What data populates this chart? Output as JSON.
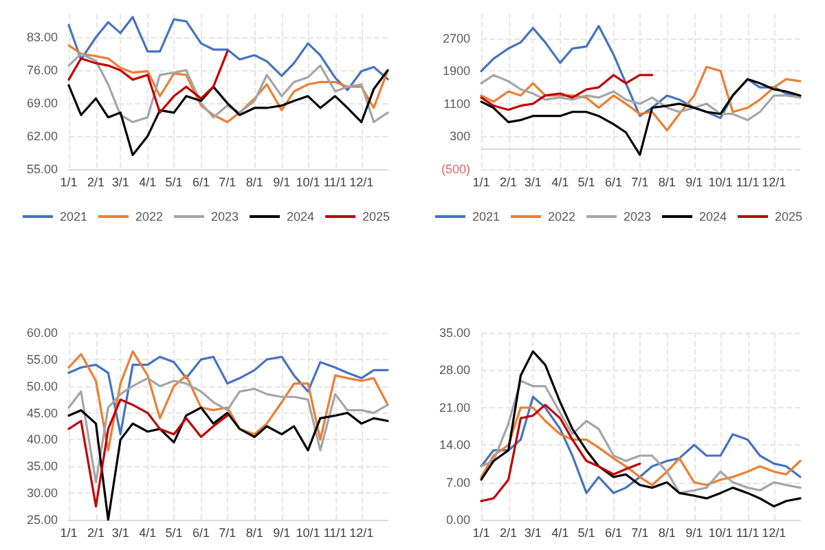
{
  "chart_data": [
    {
      "type": "line",
      "x": [
        "--01-01",
        "--01-15",
        "--02-01",
        "--02-15",
        "--03-01",
        "--03-15",
        "--04-01",
        "--04-15",
        "--05-01",
        "--05-15",
        "--06-01",
        "--06-15",
        "--07-01",
        "--07-15",
        "--08-01",
        "--08-15",
        "--09-01",
        "--09-15",
        "--10-01",
        "--10-15",
        "--11-01",
        "--11-15",
        "--12-01",
        "--12-15",
        "--12-31"
      ],
      "xlim": [
        "--01-01",
        "--12-31"
      ],
      "xticks": [
        {
          "value": "--01-01",
          "label": "1/1"
        },
        {
          "value": "--02-01",
          "label": "2/1"
        },
        {
          "value": "--03-01",
          "label": "3/1"
        },
        {
          "value": "--04-01",
          "label": "4/1"
        },
        {
          "value": "--05-01",
          "label": "5/1"
        },
        {
          "value": "--06-01",
          "label": "6/1"
        },
        {
          "value": "--07-01",
          "label": "7/1"
        },
        {
          "value": "--08-01",
          "label": "8/1"
        },
        {
          "value": "--09-01",
          "label": "9/1"
        },
        {
          "value": "--10-01",
          "label": "10/1"
        },
        {
          "value": "--11-01",
          "label": "11/1"
        },
        {
          "value": "--12-01",
          "label": "12/1"
        }
      ],
      "ylim": [
        55,
        88
      ],
      "yticks": [
        {
          "value": 55,
          "label": "55.00"
        },
        {
          "value": 62,
          "label": "62.00"
        },
        {
          "value": 69,
          "label": "69.00"
        },
        {
          "value": 76,
          "label": "76.00"
        },
        {
          "value": 83,
          "label": "83.00"
        }
      ],
      "grid": true,
      "legend": "bottom",
      "marker": "none",
      "line_style": "solid",
      "series": [
        {
          "name": "2021",
          "color": "#4472c4",
          "values": [
            85.6,
            78.3,
            83,
            86.2,
            83.9,
            87.3,
            80,
            80,
            86.8,
            86.4,
            81.7,
            80.4,
            80.4,
            78.3,
            79.2,
            77.9,
            74.8,
            77.5,
            81.7,
            79.2,
            74.4,
            71.8,
            75.8,
            76.7,
            74.1
          ]
        },
        {
          "name": "2022",
          "color": "#ed7d31",
          "values": [
            81.3,
            79.5,
            79,
            78.5,
            76.5,
            75.5,
            75.8,
            70.5,
            75.3,
            75,
            68.5,
            66.5,
            65,
            67,
            70,
            73,
            67.5,
            71.5,
            73,
            73.5,
            73.5,
            72.5,
            72.5,
            68,
            76
          ]
        },
        {
          "name": "2023",
          "color": "#a5a5a5",
          "values": [
            77,
            79.5,
            78,
            73,
            66.5,
            65,
            66,
            75,
            75.5,
            76,
            69,
            66,
            68.5,
            67,
            69.5,
            75,
            70.5,
            73.5,
            74.5,
            77,
            71.5,
            72.5,
            73,
            65,
            67
          ]
        },
        {
          "name": "2024",
          "color": "#000000",
          "values": [
            72.8,
            66.5,
            70,
            66,
            67,
            58,
            62,
            67.5,
            67,
            70.5,
            69.5,
            72.5,
            69,
            66.5,
            68,
            68,
            68.5,
            69.5,
            70.5,
            68,
            70.5,
            68,
            65,
            72,
            76
          ]
        },
        {
          "name": "2025",
          "color": "#c00000",
          "values": [
            74,
            78.5,
            77.5,
            77,
            76,
            74,
            75,
            67,
            70.5,
            72.5,
            70,
            72.5,
            80,
            null,
            null,
            null,
            null,
            null,
            null,
            null,
            null,
            null,
            null,
            null,
            null
          ]
        }
      ]
    },
    {
      "type": "line",
      "x": [
        "--01-01",
        "--01-15",
        "--02-01",
        "--02-15",
        "--03-01",
        "--03-15",
        "--04-01",
        "--04-15",
        "--05-01",
        "--05-15",
        "--06-01",
        "--06-15",
        "--07-01",
        "--07-15",
        "--08-01",
        "--08-15",
        "--09-01",
        "--09-15",
        "--10-01",
        "--10-15",
        "--11-01",
        "--11-15",
        "--12-01",
        "--12-15",
        "--12-31"
      ],
      "xlim": [
        "--01-01",
        "--12-31"
      ],
      "xticks": [
        {
          "value": "--01-01",
          "label": "1/1"
        },
        {
          "value": "--02-01",
          "label": "2/1"
        },
        {
          "value": "--03-01",
          "label": "3/1"
        },
        {
          "value": "--04-01",
          "label": "4/1"
        },
        {
          "value": "--05-01",
          "label": "5/1"
        },
        {
          "value": "--06-01",
          "label": "6/1"
        },
        {
          "value": "--07-01",
          "label": "7/1"
        },
        {
          "value": "--08-01",
          "label": "8/1"
        },
        {
          "value": "--09-01",
          "label": "9/1"
        },
        {
          "value": "--10-01",
          "label": "10/1"
        },
        {
          "value": "--11-01",
          "label": "11/1"
        },
        {
          "value": "--12-01",
          "label": "12/1"
        }
      ],
      "ylim": [
        -500,
        3300
      ],
      "yticks": [
        {
          "value": -500,
          "label": "(500)"
        },
        300,
        1100,
        1900,
        2700
      ],
      "grid": true,
      "legend": "bottom",
      "marker": "none",
      "line_style": "solid",
      "series": [
        {
          "name": "2021",
          "color": "#4472c4",
          "values": [
            1900,
            2200,
            2450,
            2600,
            2950,
            2600,
            2100,
            2450,
            2500,
            3000,
            2300,
            1600,
            800,
            1000,
            1300,
            1200,
            1000,
            900,
            750,
            1300,
            1700,
            1500,
            1500,
            1350,
            1250
          ]
        },
        {
          "name": "2022",
          "color": "#ed7d31",
          "values": [
            1300,
            1150,
            1400,
            1300,
            1600,
            1300,
            1300,
            1300,
            1250,
            1000,
            1300,
            1100,
            850,
            900,
            450,
            850,
            1300,
            2000,
            1900,
            900,
            1000,
            1200,
            1500,
            1700,
            1650
          ]
        },
        {
          "name": "2023",
          "color": "#a5a5a5",
          "values": [
            1600,
            1800,
            1650,
            1450,
            1350,
            1200,
            1250,
            1200,
            1300,
            1250,
            1400,
            1200,
            1100,
            1250,
            1000,
            900,
            1000,
            1100,
            850,
            850,
            700,
            900,
            1300,
            1300,
            1250
          ]
        },
        {
          "name": "2024",
          "color": "#000000",
          "values": [
            1150,
            1000,
            650,
            700,
            800,
            800,
            800,
            900,
            900,
            800,
            600,
            400,
            -150,
            1000,
            1050,
            1100,
            1000,
            900,
            850,
            1300,
            1700,
            1600,
            1450,
            1400,
            1300
          ]
        },
        {
          "name": "2025",
          "color": "#c00000",
          "values": [
            1250,
            1050,
            950,
            1050,
            1100,
            1300,
            1350,
            1250,
            1450,
            1500,
            1800,
            1600,
            1800,
            1800,
            null,
            null,
            null,
            null,
            null,
            null,
            null,
            null,
            null,
            null,
            null
          ]
        }
      ]
    },
    {
      "type": "line",
      "x": [
        "--01-01",
        "--01-15",
        "--02-01",
        "--02-15",
        "--03-01",
        "--03-15",
        "--04-01",
        "--04-15",
        "--05-01",
        "--05-15",
        "--06-01",
        "--06-15",
        "--07-01",
        "--07-15",
        "--08-01",
        "--08-15",
        "--09-01",
        "--09-15",
        "--10-01",
        "--10-15",
        "--11-01",
        "--11-15",
        "--12-01",
        "--12-15",
        "--12-31"
      ],
      "xlim": [
        "--01-01",
        "--12-31"
      ],
      "xticks": [
        {
          "value": "--01-01",
          "label": "1/1"
        },
        {
          "value": "--02-01",
          "label": "2/1"
        },
        {
          "value": "--03-01",
          "label": "3/1"
        },
        {
          "value": "--04-01",
          "label": "4/1"
        },
        {
          "value": "--05-01",
          "label": "5/1"
        },
        {
          "value": "--06-01",
          "label": "6/1"
        },
        {
          "value": "--07-01",
          "label": "7/1"
        },
        {
          "value": "--08-01",
          "label": "8/1"
        },
        {
          "value": "--09-01",
          "label": "9/1"
        },
        {
          "value": "--10-01",
          "label": "10/1"
        },
        {
          "value": "--11-01",
          "label": "11/1"
        },
        {
          "value": "--12-01",
          "label": "12/1"
        }
      ],
      "ylim": [
        25,
        60
      ],
      "yticks": [
        {
          "value": 25,
          "label": "25.00"
        },
        {
          "value": 30,
          "label": "30.00"
        },
        {
          "value": 35,
          "label": "35.00"
        },
        {
          "value": 40,
          "label": "40.00"
        },
        {
          "value": 45,
          "label": "45.00"
        },
        {
          "value": 50,
          "label": "50.00"
        },
        {
          "value": 55,
          "label": "55.00"
        },
        {
          "value": 60,
          "label": "60.00"
        }
      ],
      "grid": true,
      "marker": "none",
      "line_style": "solid",
      "series": [
        {
          "color": "#4472c4",
          "values": [
            52.5,
            53.5,
            54,
            52.5,
            41,
            54,
            54,
            55.5,
            54.5,
            51.5,
            55,
            55.5,
            50.5,
            51.5,
            53,
            55,
            55.5,
            52,
            49,
            54.5,
            53.5,
            52.5,
            51.5,
            53,
            53
          ]
        },
        {
          "color": "#ed7d31",
          "values": [
            53.5,
            56,
            51,
            38,
            50.5,
            56.5,
            52,
            44,
            50,
            52,
            46,
            45.5,
            46,
            42,
            41,
            43,
            47,
            50.5,
            50.5,
            40,
            52,
            51.5,
            51,
            51.5,
            46.5
          ]
        },
        {
          "color": "#a5a5a5",
          "values": [
            46,
            49,
            32,
            46,
            48.5,
            50,
            51.5,
            50,
            51,
            50.5,
            49,
            47,
            45.5,
            49,
            49.5,
            48.5,
            48,
            48,
            47.5,
            38,
            48.5,
            45.5,
            45.5,
            45,
            46.5
          ]
        },
        {
          "color": "#000000",
          "values": [
            44.5,
            45.5,
            43,
            25,
            40,
            43,
            41.5,
            42,
            39.5,
            44.5,
            46,
            43,
            45,
            42,
            40.5,
            42.5,
            41,
            42.5,
            38,
            44,
            44.5,
            45,
            43,
            44,
            43.5
          ]
        },
        {
          "color": "#c00000",
          "values": [
            42,
            43.5,
            27.5,
            42,
            47.5,
            46.5,
            45,
            42,
            41,
            44,
            40.5,
            42.5,
            44.5,
            null,
            null,
            null,
            null,
            null,
            null,
            null,
            null,
            null,
            null,
            null,
            null
          ]
        }
      ]
    },
    {
      "type": "line",
      "x": [
        "--01-01",
        "--01-15",
        "--02-01",
        "--02-15",
        "--03-01",
        "--03-15",
        "--04-01",
        "--04-15",
        "--05-01",
        "--05-15",
        "--06-01",
        "--06-15",
        "--07-01",
        "--07-15",
        "--08-01",
        "--08-15",
        "--09-01",
        "--09-15",
        "--10-01",
        "--10-15",
        "--11-01",
        "--11-15",
        "--12-01",
        "--12-15",
        "--12-31"
      ],
      "xlim": [
        "--01-01",
        "--12-31"
      ],
      "xticks": [
        {
          "value": "--01-01",
          "label": "1/1"
        },
        {
          "value": "--02-01",
          "label": "2/1"
        },
        {
          "value": "--03-01",
          "label": "3/1"
        },
        {
          "value": "--04-01",
          "label": "4/1"
        },
        {
          "value": "--05-01",
          "label": "5/1"
        },
        {
          "value": "--06-01",
          "label": "6/1"
        },
        {
          "value": "--07-01",
          "label": "7/1"
        },
        {
          "value": "--08-01",
          "label": "8/1"
        },
        {
          "value": "--09-01",
          "label": "9/1"
        },
        {
          "value": "--10-01",
          "label": "10/1"
        },
        {
          "value": "--11-01",
          "label": "11/1"
        },
        {
          "value": "--12-01",
          "label": "12/1"
        }
      ],
      "ylim": [
        0,
        35
      ],
      "yticks": [
        {
          "value": 0,
          "label": "0.00"
        },
        {
          "value": 7,
          "label": "7.00"
        },
        {
          "value": 14,
          "label": "14.00"
        },
        {
          "value": 21,
          "label": "21.00"
        },
        {
          "value": 28,
          "label": "28.00"
        },
        {
          "value": 35,
          "label": "35.00"
        }
      ],
      "grid": true,
      "marker": "none",
      "line_style": "solid",
      "series": [
        {
          "color": "#4472c4",
          "values": [
            10,
            13,
            13,
            15,
            23,
            21,
            17,
            12,
            5,
            8,
            5,
            6,
            8,
            10,
            11,
            11.5,
            14,
            12,
            12,
            16,
            15,
            12,
            10.5,
            10,
            8
          ]
        },
        {
          "color": "#ed7d31",
          "values": [
            8,
            12,
            14,
            21,
            21,
            18.5,
            16,
            15,
            15,
            13.5,
            11.5,
            10,
            8,
            6.5,
            9,
            11.5,
            7,
            6.5,
            7.5,
            8,
            9,
            10,
            9,
            8.5,
            11
          ]
        },
        {
          "color": "#a5a5a5",
          "values": [
            10,
            11,
            18,
            26,
            25,
            25,
            20,
            16,
            18.5,
            17,
            12,
            11,
            12,
            12,
            9,
            5,
            5.5,
            6,
            9,
            7,
            6,
            5.5,
            7,
            6.5,
            6
          ]
        },
        {
          "color": "#000000",
          "values": [
            7.5,
            11,
            13,
            27,
            31.5,
            29,
            22,
            17,
            13,
            10,
            8,
            8.5,
            6.5,
            6,
            7,
            5,
            4.5,
            4,
            5,
            6,
            5,
            4,
            2.5,
            3.5,
            4
          ]
        },
        {
          "color": "#c00000",
          "values": [
            3.5,
            4,
            7.5,
            19,
            19.5,
            21.5,
            19,
            15,
            11,
            10,
            8.5,
            9.5,
            10.5,
            null,
            null,
            null,
            null,
            null,
            null,
            null,
            null,
            null,
            null,
            null,
            null
          ]
        }
      ]
    }
  ]
}
